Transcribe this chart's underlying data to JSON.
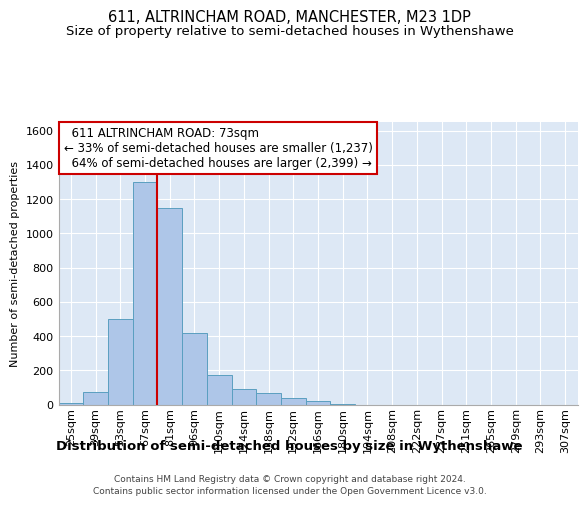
{
  "title": "611, ALTRINCHAM ROAD, MANCHESTER, M23 1DP",
  "subtitle": "Size of property relative to semi-detached houses in Wythenshawe",
  "xlabel_bottom": "Distribution of semi-detached houses by size in Wythenshawe",
  "ylabel": "Number of semi-detached properties",
  "footer_line1": "Contains HM Land Registry data © Crown copyright and database right 2024.",
  "footer_line2": "Contains public sector information licensed under the Open Government Licence v3.0.",
  "bar_labels": [
    "25sqm",
    "39sqm",
    "53sqm",
    "67sqm",
    "81sqm",
    "96sqm",
    "110sqm",
    "124sqm",
    "138sqm",
    "152sqm",
    "166sqm",
    "180sqm",
    "194sqm",
    "208sqm",
    "222sqm",
    "237sqm",
    "251sqm",
    "265sqm",
    "279sqm",
    "293sqm",
    "307sqm"
  ],
  "bar_values": [
    10,
    75,
    500,
    1300,
    1150,
    420,
    170,
    90,
    65,
    40,
    20,
    5,
    0,
    0,
    0,
    0,
    0,
    0,
    0,
    0,
    0
  ],
  "bar_color": "#aec6e8",
  "bar_edgecolor": "#5a9fc0",
  "background_color": "#dde8f5",
  "grid_color": "#ffffff",
  "property_label": "611 ALTRINCHAM ROAD: 73sqm",
  "pct_smaller": 33,
  "n_smaller": 1237,
  "pct_larger": 64,
  "n_larger": 2399,
  "vline_color": "#cc0000",
  "annotation_box_edgecolor": "#cc0000",
  "vline_x": 3.5,
  "ylim": [
    0,
    1650
  ],
  "yticks": [
    0,
    200,
    400,
    600,
    800,
    1000,
    1200,
    1400,
    1600
  ],
  "title_fontsize": 10.5,
  "subtitle_fontsize": 9.5,
  "ylabel_fontsize": 8,
  "xlabel_fontsize": 9.5,
  "tick_fontsize": 8,
  "annotation_fontsize": 8.5,
  "footer_fontsize": 6.5
}
